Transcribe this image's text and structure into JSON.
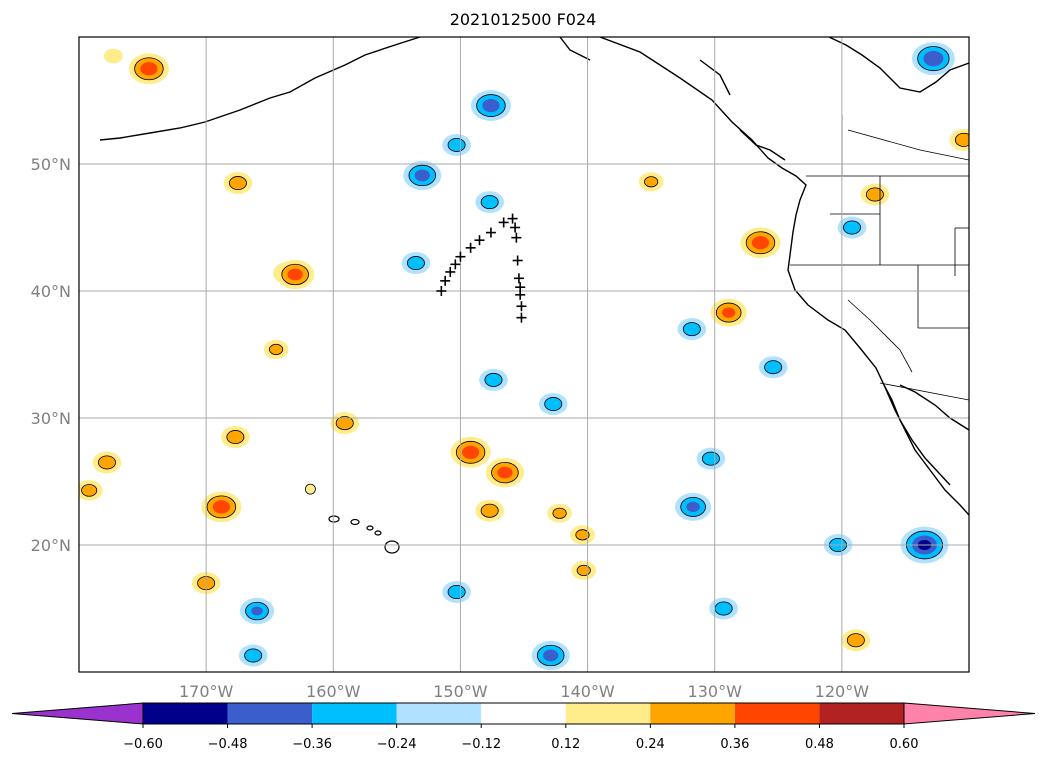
{
  "title": "2021012500 F024",
  "chart_data": {
    "type": "heatmap",
    "title": "2021012500 F024",
    "map_extent": {
      "lon": [
        -180,
        -110
      ],
      "lat": [
        10,
        60
      ]
    },
    "grid_lon": [
      -170,
      -160,
      -150,
      -140,
      -130,
      -120
    ],
    "grid_lat": [
      20,
      30,
      40,
      50
    ],
    "lon_labels": [
      "170°W",
      "160°W",
      "150°W",
      "140°W",
      "130°W",
      "120°W"
    ],
    "lat_labels": [
      "20°N",
      "30°N",
      "40°N",
      "50°N"
    ],
    "grid": true,
    "colorbar": {
      "extend": "both",
      "ticks": [
        -0.6,
        -0.48,
        -0.36,
        -0.24,
        -0.12,
        0.12,
        0.24,
        0.36,
        0.48,
        0.6
      ],
      "tick_labels": [
        "−0.60",
        "−0.48",
        "−0.36",
        "−0.24",
        "−0.12",
        "0.12",
        "0.24",
        "0.36",
        "0.48",
        "0.60"
      ],
      "colors": [
        "#9a32cd",
        "#00008b",
        "#3a5fcd",
        "#00bfff",
        "#b0e2ff",
        "#ffffff",
        "#ffec8b",
        "#ffa500",
        "#ff4500",
        "#b22222",
        "#ff82ab"
      ]
    },
    "track_markers": [
      {
        "lon": -151.5,
        "lat": 40.0
      },
      {
        "lon": -151.2,
        "lat": 40.8
      },
      {
        "lon": -150.8,
        "lat": 41.5
      },
      {
        "lon": -150.4,
        "lat": 42.1
      },
      {
        "lon": -150.0,
        "lat": 42.7
      },
      {
        "lon": -149.2,
        "lat": 43.4
      },
      {
        "lon": -148.5,
        "lat": 44.0
      },
      {
        "lon": -147.6,
        "lat": 44.6
      },
      {
        "lon": -146.6,
        "lat": 45.4
      },
      {
        "lon": -145.9,
        "lat": 45.7
      },
      {
        "lon": -145.7,
        "lat": 45.0
      },
      {
        "lon": -145.6,
        "lat": 44.2
      },
      {
        "lon": -145.5,
        "lat": 42.4
      },
      {
        "lon": -145.4,
        "lat": 41.0
      },
      {
        "lon": -145.3,
        "lat": 40.3
      },
      {
        "lon": -145.3,
        "lat": 39.7
      },
      {
        "lon": -145.2,
        "lat": 38.8
      },
      {
        "lon": -145.2,
        "lat": 37.9
      }
    ],
    "anomaly_cells": [
      {
        "lon": -174.5,
        "lat": 57.5,
        "v": 0.42
      },
      {
        "lon": -177.3,
        "lat": 58.5,
        "v": 0.2
      },
      {
        "lon": -167.5,
        "lat": 48.5,
        "v": 0.3
      },
      {
        "lon": -163.6,
        "lat": 41.4,
        "v": 0.3
      },
      {
        "lon": -168.8,
        "lat": 23.0,
        "v": 0.42
      },
      {
        "lon": -167.7,
        "lat": 28.5,
        "v": 0.3
      },
      {
        "lon": -177.8,
        "lat": 26.5,
        "v": 0.3
      },
      {
        "lon": -179.2,
        "lat": 24.3,
        "v": 0.28
      },
      {
        "lon": -170.0,
        "lat": 17.0,
        "v": 0.3
      },
      {
        "lon": -163.0,
        "lat": 41.3,
        "v": 0.4
      },
      {
        "lon": -164.5,
        "lat": 35.4,
        "v": 0.26
      },
      {
        "lon": -159.1,
        "lat": 29.6,
        "v": 0.3
      },
      {
        "lon": -149.2,
        "lat": 27.3,
        "v": 0.42
      },
      {
        "lon": -146.5,
        "lat": 25.7,
        "v": 0.4
      },
      {
        "lon": -147.7,
        "lat": 22.7,
        "v": 0.3
      },
      {
        "lon": -142.2,
        "lat": 22.5,
        "v": 0.26
      },
      {
        "lon": -140.3,
        "lat": 18.0,
        "v": 0.26
      },
      {
        "lon": -140.4,
        "lat": 20.8,
        "v": 0.26
      },
      {
        "lon": -135.0,
        "lat": 48.6,
        "v": 0.26
      },
      {
        "lon": -126.4,
        "lat": 43.8,
        "v": 0.42
      },
      {
        "lon": -128.9,
        "lat": 38.3,
        "v": 0.38
      },
      {
        "lon": -117.4,
        "lat": 47.6,
        "v": 0.3
      },
      {
        "lon": -110.4,
        "lat": 51.9,
        "v": 0.3
      },
      {
        "lon": -118.9,
        "lat": 12.5,
        "v": 0.3
      },
      {
        "lon": -161.8,
        "lat": 24.4,
        "v": 0.0
      },
      {
        "lon": -147.6,
        "lat": 54.6,
        "v": -0.42
      },
      {
        "lon": -150.3,
        "lat": 51.5,
        "v": -0.3
      },
      {
        "lon": -147.7,
        "lat": 47.0,
        "v": -0.3
      },
      {
        "lon": -153.0,
        "lat": 49.1,
        "v": -0.4
      },
      {
        "lon": -153.5,
        "lat": 42.2,
        "v": -0.3
      },
      {
        "lon": -112.8,
        "lat": 58.3,
        "v": -0.45
      },
      {
        "lon": -131.8,
        "lat": 37.0,
        "v": -0.3
      },
      {
        "lon": -147.4,
        "lat": 33.0,
        "v": -0.3
      },
      {
        "lon": -142.7,
        "lat": 31.1,
        "v": -0.3
      },
      {
        "lon": -130.3,
        "lat": 26.8,
        "v": -0.3
      },
      {
        "lon": -131.7,
        "lat": 23.0,
        "v": -0.38
      },
      {
        "lon": -129.3,
        "lat": 15.0,
        "v": -0.3
      },
      {
        "lon": -120.3,
        "lat": 20.0,
        "v": -0.3
      },
      {
        "lon": -113.5,
        "lat": 20.0,
        "v": -0.5
      },
      {
        "lon": -142.9,
        "lat": 11.3,
        "v": -0.4
      },
      {
        "lon": -150.3,
        "lat": 16.3,
        "v": -0.3
      },
      {
        "lon": -166.0,
        "lat": 14.8,
        "v": -0.36
      },
      {
        "lon": -166.3,
        "lat": 11.3,
        "v": -0.3
      },
      {
        "lon": -119.2,
        "lat": 45.0,
        "v": -0.3
      },
      {
        "lon": -125.4,
        "lat": 34.0,
        "v": -0.3
      }
    ]
  },
  "icons": {
    "colorbar_arrow_left": "triangle-left",
    "colorbar_arrow_right": "triangle-right",
    "track_marker": "plus-sign"
  }
}
